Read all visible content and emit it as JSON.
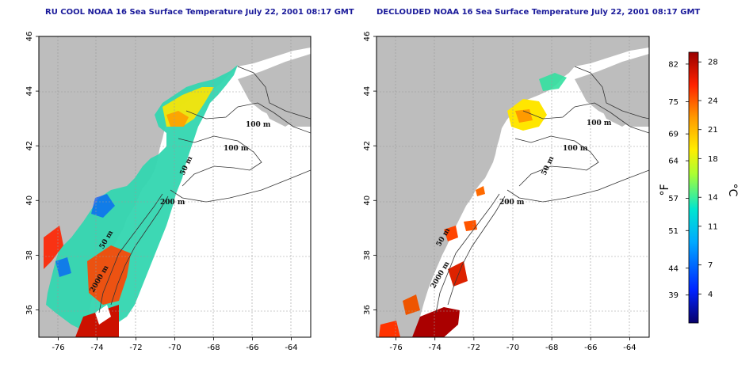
{
  "panels": [
    {
      "title": "RU COOL NOAA 16 Sea Surface Temperature July 22, 2001 08:17 GMT",
      "contour_labels": [
        "100 m",
        "100 m",
        "50 m",
        "200 m",
        "50 m",
        "2000 m"
      ]
    },
    {
      "title": "DECLOUDED NOAA 16 Sea Surface Temperature July 22, 2001 08:17 GMT",
      "contour_labels": [
        "100 m",
        "100 m",
        "50 m",
        "200 m",
        "50 m",
        "2000 m"
      ]
    }
  ],
  "axes": {
    "x_ticks": [
      "-76",
      "-74",
      "-72",
      "-70",
      "-68",
      "-66",
      "-64"
    ],
    "y_ticks": [
      "36",
      "38",
      "40",
      "42",
      "44",
      "46"
    ],
    "lon_range": [
      -77,
      -63
    ],
    "lat_range": [
      35,
      46
    ],
    "grid": true
  },
  "colorbar": {
    "unit_f": "°F",
    "unit_c": "°C",
    "f_ticks": [
      "82",
      "75",
      "69",
      "64",
      "57",
      "51",
      "44",
      "39"
    ],
    "c_ticks": [
      "28",
      "24",
      "21",
      "18",
      "14",
      "11",
      "7",
      "4"
    ],
    "c_tick_values": [
      28,
      24,
      21,
      18,
      14,
      11,
      7,
      4
    ],
    "f_tick_values": [
      82,
      75,
      69,
      64,
      57,
      51,
      44,
      39
    ],
    "c_range": [
      1,
      29
    ]
  },
  "colors": {
    "land": "#bdbdbd",
    "title": "#1a1a9a",
    "scale": [
      "#08006a",
      "#0033ff",
      "#00c8ff",
      "#33e0a0",
      "#ffff00",
      "#ff9900",
      "#ff3300",
      "#a00000"
    ]
  }
}
